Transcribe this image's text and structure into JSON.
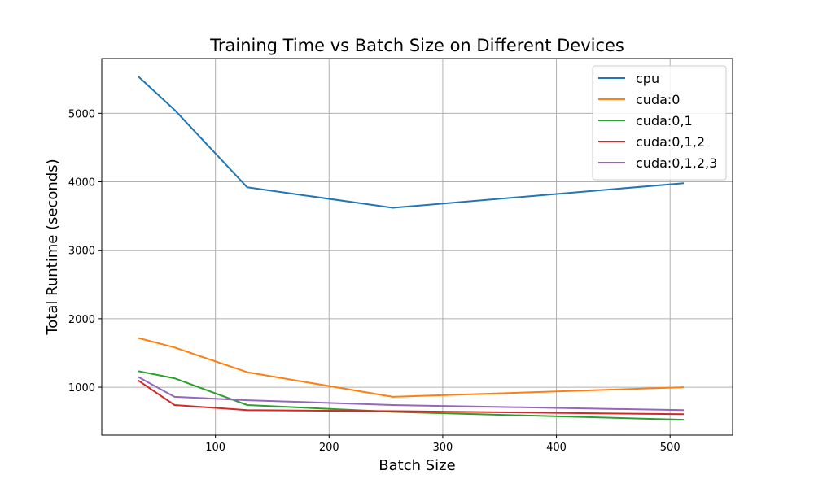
{
  "chart_data": {
    "type": "line",
    "title": "Training Time vs Batch Size on Different Devices",
    "xlabel": "Batch Size",
    "ylabel": "Total Runtime (seconds)",
    "x": [
      32,
      64,
      128,
      256,
      512
    ],
    "xlim": [
      0,
      555
    ],
    "ylim": [
      300,
      5800
    ],
    "xticks": [
      100,
      200,
      300,
      400,
      500
    ],
    "yticks": [
      1000,
      2000,
      3000,
      4000,
      5000
    ],
    "grid": true,
    "legend_position": "top-right",
    "series": [
      {
        "name": "cpu",
        "color": "#1f77b4",
        "values": [
          5540,
          5050,
          3920,
          3620,
          3980
        ]
      },
      {
        "name": "cuda:0",
        "color": "#ff7f0e",
        "values": [
          1720,
          1580,
          1220,
          860,
          1000
        ]
      },
      {
        "name": "cuda:0,1",
        "color": "#2ca02c",
        "values": [
          1235,
          1130,
          740,
          640,
          525
        ]
      },
      {
        "name": "cuda:0,1,2",
        "color": "#d62728",
        "values": [
          1100,
          740,
          665,
          650,
          605
        ]
      },
      {
        "name": "cuda:0,1,2,3",
        "color": "#9467bd",
        "values": [
          1150,
          860,
          810,
          740,
          665
        ]
      }
    ]
  }
}
